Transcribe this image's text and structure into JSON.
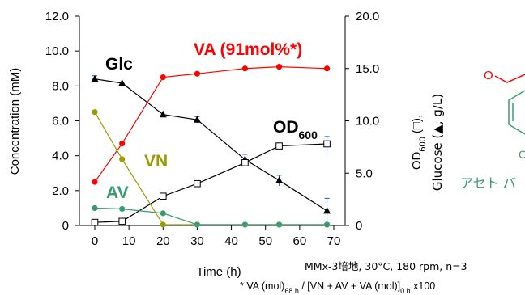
{
  "chart_data": {
    "type": "line",
    "xlabel": "Time (h)",
    "ylabel": "Concentration (mM)",
    "y2label_line1": "OD600 (□),",
    "y2label_line1_main": "OD",
    "y2label_line1_sub": "600",
    "y2label_line1_rest": " (□),",
    "y2label_line2": "Glucose (▲, g/L)",
    "xlim": [
      0,
      70
    ],
    "ylim": [
      0,
      12
    ],
    "y2lim": [
      0,
      20
    ],
    "xticks": [
      "0",
      "10",
      "20",
      "30",
      "40",
      "50",
      "60",
      "70"
    ],
    "yticks": [
      "0",
      "2.0",
      "4.0",
      "6.0",
      "8.0",
      "10.0",
      "12.0"
    ],
    "y2ticks": [
      "0",
      "5.0",
      "10.0",
      "15.0",
      "20.0"
    ],
    "series": [
      {
        "name": "VA (91mol%*)",
        "axis": "left",
        "color": "#ff0000",
        "marker": "circle",
        "x": [
          0,
          8,
          20,
          30,
          44,
          54,
          68
        ],
        "y": [
          2.5,
          4.7,
          8.5,
          8.7,
          9.0,
          9.1,
          9.0
        ]
      },
      {
        "name": "Glc",
        "axis": "right",
        "color": "#000000",
        "marker": "triangle",
        "x": [
          0,
          8,
          20,
          30,
          44,
          54,
          68
        ],
        "y": [
          14.0,
          13.6,
          10.6,
          10.1,
          6.3,
          4.3,
          1.4
        ],
        "err": [
          0.3,
          0,
          0,
          0.3,
          0.5,
          0.5,
          1.2
        ]
      },
      {
        "name": "OD600",
        "name_main": "OD",
        "name_sub": "600",
        "axis": "right",
        "color": "#000000",
        "marker": "square-open",
        "x": [
          0,
          8,
          20,
          30,
          44,
          54,
          68
        ],
        "y": [
          0.3,
          0.4,
          2.8,
          4.0,
          6.0,
          7.6,
          7.8
        ],
        "err": [
          0,
          0,
          0,
          0,
          0.3,
          0,
          0.7
        ]
      },
      {
        "name": "VN",
        "axis": "left",
        "color": "#9a9a00",
        "marker": "circle",
        "x": [
          0,
          8,
          20,
          30,
          44,
          54,
          68
        ],
        "y": [
          6.5,
          3.8,
          0.05,
          0.05,
          0.05,
          0.05,
          0.05
        ]
      },
      {
        "name": "AV",
        "axis": "left",
        "color": "#3a9a70",
        "marker": "circle",
        "x": [
          0,
          8,
          20,
          30,
          44,
          54,
          68
        ],
        "y": [
          1.0,
          0.95,
          0.7,
          0.05,
          0.05,
          0.05,
          0.05
        ]
      }
    ],
    "annotations": {
      "conditions": "MMx-3培地, 30°C, 180 rpm, n=3",
      "footnote_parts": [
        "* VA (mol)",
        "68 h",
        " / [VN + AV + VA (mol)]",
        "0 h",
        " x100"
      ],
      "structure_label": "アセト バ",
      "structure_atom": "O"
    }
  }
}
